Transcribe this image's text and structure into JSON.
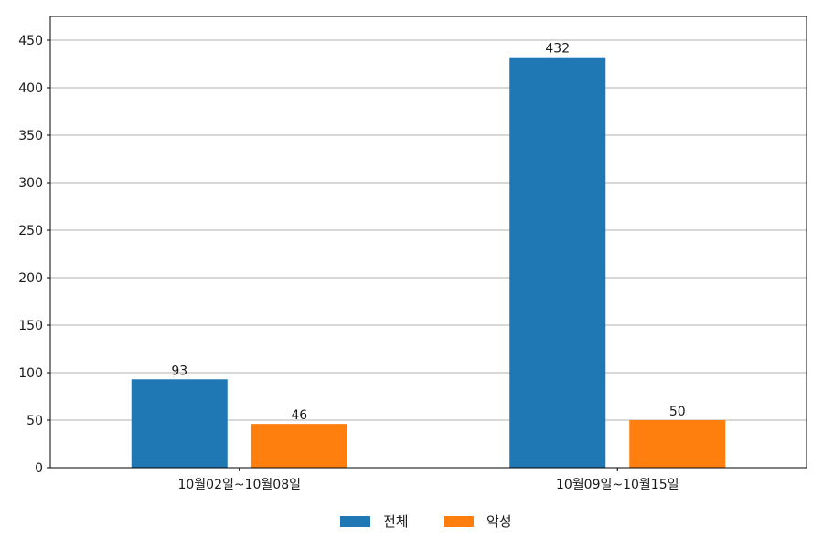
{
  "chart_data": {
    "type": "bar",
    "categories": [
      "10월02일~10월08일",
      "10월09일~10월15일"
    ],
    "series": [
      {
        "name": "전체",
        "values": [
          93,
          432
        ],
        "color": "#1f77b4"
      },
      {
        "name": "악성",
        "values": [
          46,
          50
        ],
        "color": "#ff7f0e"
      }
    ],
    "title": "",
    "xlabel": "",
    "ylabel": "",
    "ylim": [
      0,
      475
    ],
    "yticks": [
      0,
      50,
      100,
      150,
      200,
      250,
      300,
      350,
      400,
      450
    ],
    "grid": "y",
    "legend": "bottom-center"
  }
}
